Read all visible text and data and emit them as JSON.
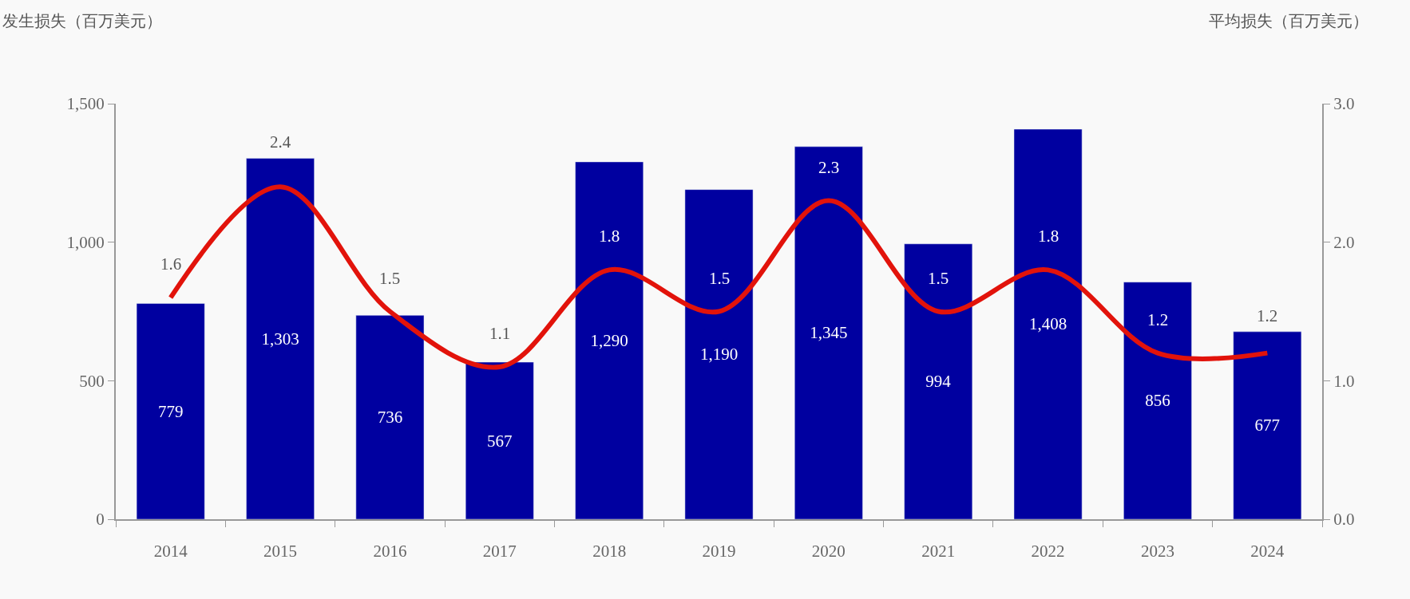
{
  "chart_data": {
    "type": "bar",
    "ylabel": "发生损失（百万美元）",
    "y2label": "平均损失（百万美元）",
    "categories": [
      "2014",
      "2015",
      "2016",
      "2017",
      "2018",
      "2019",
      "2020",
      "2021",
      "2022",
      "2023",
      "2024"
    ],
    "series": [
      {
        "color": "#0000a0",
        "values": [
          779,
          1303,
          736,
          567,
          1290,
          1190,
          1345,
          994,
          1408,
          856,
          677
        ],
        "value_labels": [
          "779",
          "1,303",
          "736",
          "567",
          "1,290",
          "1,190",
          "1,345",
          "994",
          "1,408",
          "856",
          "677"
        ]
      },
      {
        "type": "line",
        "axis": "y2",
        "color": "#e2130b",
        "values": [
          1.6,
          2.4,
          1.5,
          1.1,
          1.8,
          1.5,
          2.3,
          1.5,
          1.8,
          1.2,
          1.2
        ],
        "value_labels": [
          "1.6",
          "2.4",
          "1.5",
          "1.1",
          "1.8",
          "1.5",
          "2.3",
          "1.5",
          "1.8",
          "1.2",
          "1.2"
        ]
      }
    ],
    "ylim": [
      0,
      1500
    ],
    "yticks": [
      0,
      500,
      {
        "value": 1000,
        "label": "1,000"
      },
      {
        "value": 1500,
        "label": "1,500"
      }
    ],
    "y2lim": [
      0,
      3
    ],
    "y2ticks": [
      {
        "value": 0,
        "label": "0.0"
      },
      {
        "value": 1,
        "label": "1.0"
      },
      {
        "value": 2,
        "label": "2.0"
      },
      {
        "value": 3,
        "label": "3.0"
      }
    ],
    "grid": false,
    "legend": false,
    "marker": "none",
    "line_style": "solid"
  }
}
